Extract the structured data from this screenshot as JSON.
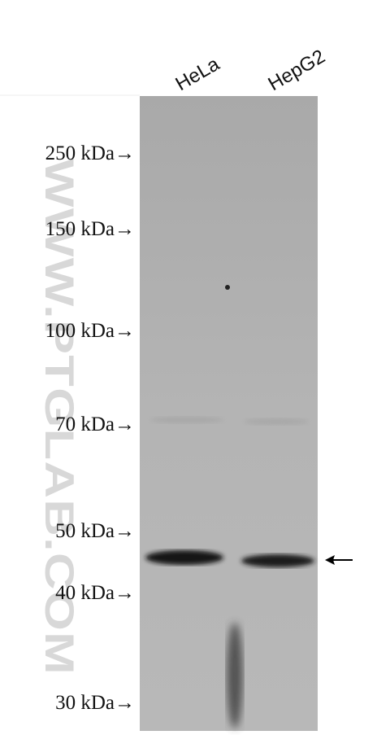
{
  "lanes": [
    "HeLa",
    "HepG2"
  ],
  "markers": [
    "250 kDa→",
    "150 kDa→",
    "100 kDa→",
    "70 kDa→",
    "50 kDa→",
    "40 kDa→",
    "30 kDa→"
  ],
  "watermark": "WWW.PTGLAB.COM"
}
